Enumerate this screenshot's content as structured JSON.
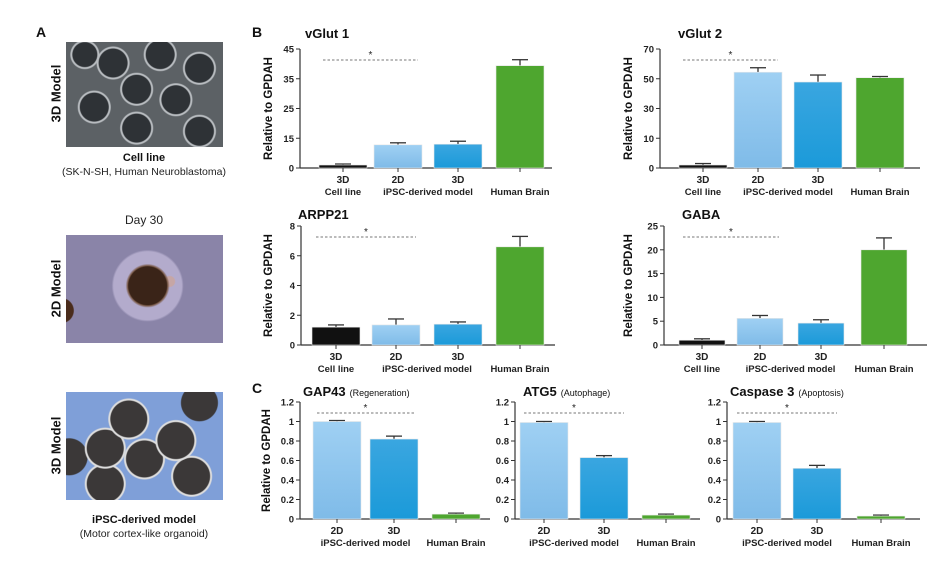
{
  "panel_letters": {
    "a": "A",
    "b": "B",
    "c": "C"
  },
  "panel_a": {
    "row1": {
      "side_label": "3D Model",
      "caption_bold": "Cell line",
      "caption": "(SK-N-SH, Human Neuroblastoma)"
    },
    "day_label": "Day 30",
    "row2": {
      "side_label": "2D Model"
    },
    "row3": {
      "side_label": "3D Model",
      "caption_bold": "iPSC-derived model",
      "caption": "(Motor cortex-like organoid)"
    }
  },
  "colors": {
    "cell_line": "#111111",
    "ipsc_2d": "#9fd0f3",
    "ipsc_3d": "#1b9ad9",
    "human_brain": "#4ea62f"
  },
  "chart_data": [
    {
      "type": "bar",
      "title": "vGlut 1",
      "subtitle": "",
      "ylabel": "Relative to GPDAH",
      "yticks": [
        0,
        15,
        25,
        35,
        45
      ],
      "categories": [
        "3D",
        "2D",
        "3D",
        ""
      ],
      "values": [
        1.5,
        11.7,
        12,
        39.4
      ],
      "errors": [
        0.5,
        1,
        1.5,
        2
      ],
      "group_labels": [
        {
          "label": "Cell line",
          "span": [
            0,
            0
          ]
        },
        {
          "label": "iPSC-derived model",
          "span": [
            1,
            2
          ]
        },
        {
          "label": "Human Brain",
          "span": [
            3,
            3
          ]
        }
      ],
      "significance": {
        "label": "*",
        "between": [
          0,
          1
        ]
      }
    },
    {
      "type": "bar",
      "title": "vGlut 2",
      "subtitle": "",
      "ylabel": "Relative to GPDAH",
      "yticks": [
        0,
        10,
        30,
        50,
        70
      ],
      "categories": [
        "3D",
        "2D",
        "3D",
        ""
      ],
      "values": [
        1,
        54.4,
        47.8,
        50.7
      ],
      "errors": [
        0.5,
        3,
        4.7,
        0.8
      ],
      "group_labels": [
        {
          "label": "Cell line",
          "span": [
            0,
            0
          ]
        },
        {
          "label": "iPSC-derived model",
          "span": [
            1,
            2
          ]
        },
        {
          "label": "Human Brain",
          "span": [
            3,
            3
          ]
        }
      ],
      "significance": {
        "label": "*",
        "between": [
          0,
          1
        ]
      }
    },
    {
      "type": "bar",
      "title": "ARPP21",
      "subtitle": "",
      "ylabel": "Relative to GPDAH",
      "yticks": [
        0,
        2,
        4,
        6,
        8
      ],
      "categories": [
        "3D",
        "2D",
        "3D",
        ""
      ],
      "values": [
        1.2,
        1.35,
        1.4,
        6.6
      ],
      "errors": [
        0.15,
        0.4,
        0.15,
        0.7
      ],
      "group_labels": [
        {
          "label": "Cell line",
          "span": [
            0,
            0
          ]
        },
        {
          "label": "iPSC-derived model",
          "span": [
            1,
            2
          ]
        },
        {
          "label": "Human Brain",
          "span": [
            3,
            3
          ]
        }
      ],
      "significance": {
        "label": "*",
        "between": [
          0,
          1
        ]
      }
    },
    {
      "type": "bar",
      "title": "GABA",
      "subtitle": "",
      "ylabel": "Relative to GPDAH",
      "yticks": [
        0,
        5,
        10,
        15,
        20,
        25
      ],
      "categories": [
        "3D",
        "2D",
        "3D",
        ""
      ],
      "values": [
        1.0,
        5.6,
        4.6,
        20
      ],
      "errors": [
        0.3,
        0.6,
        0.7,
        2.5
      ],
      "group_labels": [
        {
          "label": "Cell line",
          "span": [
            0,
            0
          ]
        },
        {
          "label": "iPSC-derived model",
          "span": [
            1,
            2
          ]
        },
        {
          "label": "Human Brain",
          "span": [
            3,
            3
          ]
        }
      ],
      "significance": {
        "label": "*",
        "between": [
          0,
          1
        ]
      }
    },
    {
      "type": "bar",
      "title": "GAP43",
      "subtitle": "(Regeneration)",
      "ylabel": "Relative to GPDAH",
      "yticks": [
        0,
        0.2,
        0.4,
        0.6,
        0.8,
        1,
        1.2
      ],
      "categories": [
        "2D",
        "3D",
        ""
      ],
      "values": [
        1.0,
        0.82,
        0.05
      ],
      "errors": [
        0.01,
        0.03,
        0.01
      ],
      "group_labels": [
        {
          "label": "iPSC-derived model",
          "span": [
            0,
            1
          ]
        },
        {
          "label": "Human Brain",
          "span": [
            2,
            2
          ]
        }
      ],
      "significance": {
        "label": "*",
        "between": [
          0,
          1
        ]
      }
    },
    {
      "type": "bar",
      "title": "ATG5",
      "subtitle": "(Autophage)",
      "ylabel": "",
      "yticks": [
        0,
        0.2,
        0.4,
        0.6,
        0.8,
        1,
        1.2
      ],
      "categories": [
        "2D",
        "3D",
        ""
      ],
      "values": [
        0.99,
        0.63,
        0.04
      ],
      "errors": [
        0.01,
        0.02,
        0.01
      ],
      "group_labels": [
        {
          "label": "iPSC-derived model",
          "span": [
            0,
            1
          ]
        },
        {
          "label": "Human Brain",
          "span": [
            2,
            2
          ]
        }
      ],
      "significance": {
        "label": "*",
        "between": [
          0,
          1
        ]
      }
    },
    {
      "type": "bar",
      "title": "Caspase 3",
      "subtitle": "(Apoptosis)",
      "ylabel": "",
      "yticks": [
        0,
        0.2,
        0.4,
        0.6,
        0.8,
        1,
        1.2
      ],
      "categories": [
        "2D",
        "3D",
        ""
      ],
      "values": [
        0.99,
        0.52,
        0.03
      ],
      "errors": [
        0.01,
        0.03,
        0.01
      ],
      "group_labels": [
        {
          "label": "iPSC-derived model",
          "span": [
            0,
            1
          ]
        },
        {
          "label": "Human Brain",
          "span": [
            2,
            2
          ]
        }
      ],
      "significance": {
        "label": "*",
        "between": [
          0,
          1
        ]
      }
    }
  ]
}
